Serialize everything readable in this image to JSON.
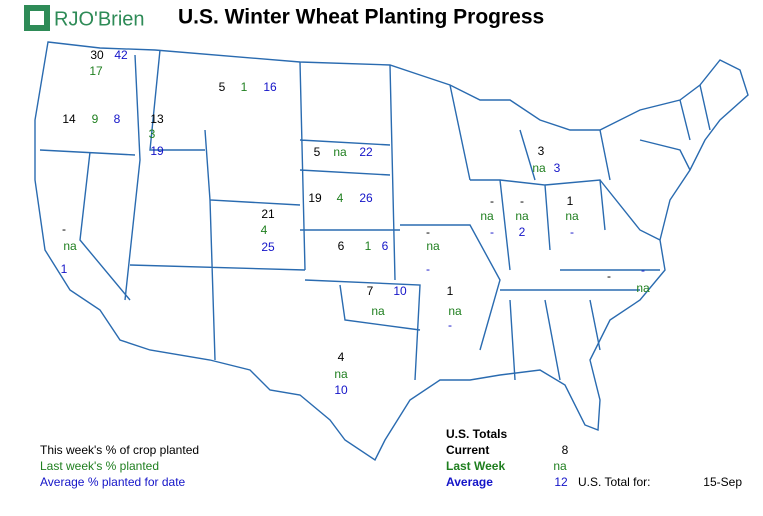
{
  "logo": "RJO'Brien",
  "title": "U.S. Winter Wheat Planting Progress",
  "states": [
    {
      "current": 30,
      "last_week": 17,
      "average": 42
    },
    {
      "current": 14,
      "last_week": 9,
      "average": 8
    },
    {
      "current": 13,
      "last_week": 3,
      "average": 19
    },
    {
      "current": 5,
      "last_week": 1,
      "average": 16
    },
    {
      "current": 5,
      "last_week": "na",
      "average": 22
    },
    {
      "current": 19,
      "last_week": 4,
      "average": 26
    },
    {
      "current": 21,
      "last_week": 4,
      "average": 25
    },
    {
      "current": 6,
      "last_week": 1,
      "average": 6
    },
    {
      "current": 7,
      "last_week": "na",
      "average": 10
    },
    {
      "current": 4,
      "last_week": "na",
      "average": 10
    },
    {
      "current": "-",
      "last_week": "na",
      "average": 1
    },
    {
      "current": "-",
      "last_week": "na",
      "average": "-"
    },
    {
      "current": 1,
      "last_week": "na",
      "average": "-"
    },
    {
      "current": "-",
      "last_week": "na",
      "average": "-"
    },
    {
      "current": "-",
      "last_week": "na",
      "average": 2
    },
    {
      "current": 1,
      "last_week": "na",
      "average": "-"
    },
    {
      "current": 3,
      "last_week": "na",
      "average": 3
    },
    {
      "current": "-",
      "last_week": "na",
      "average": "-"
    }
  ],
  "legend": [
    "This week's % of crop planted",
    "Last week's % planted",
    "Average % planted for date"
  ],
  "totals": {
    "heading": "U.S. Totals",
    "rows": [
      {
        "label": "Current",
        "value": 8
      },
      {
        "label": "Last Week",
        "value": "na"
      },
      {
        "label": "Average",
        "value": 12
      }
    ]
  },
  "total_for": {
    "label": "U.S. Total for:",
    "date": "15-Sep"
  }
}
